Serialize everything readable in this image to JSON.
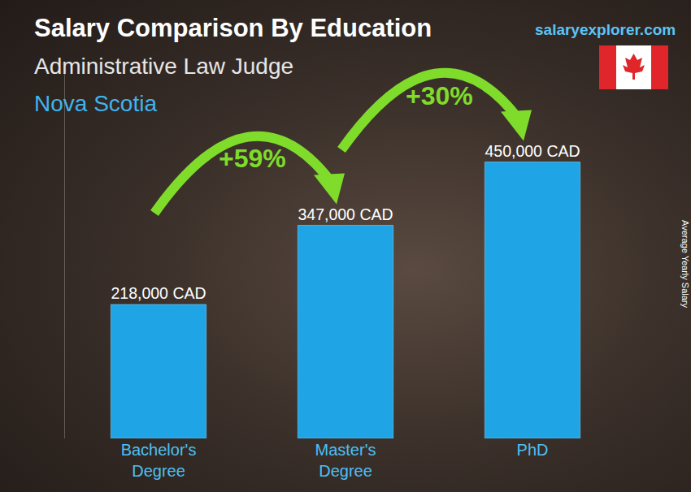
{
  "chart_data": {
    "type": "bar",
    "title": "Salary Comparison By Education",
    "subtitle": "Administrative Law Judge",
    "location": "Nova Scotia",
    "source": "salaryexplorer.com",
    "y_label": "Average Yearly Salary",
    "categories": [
      "Bachelor's Degree",
      "Master's Degree",
      "PhD"
    ],
    "values": [
      218000,
      347000,
      450000
    ],
    "value_labels": [
      "218,000 CAD",
      "347,000 CAD",
      "450,000 CAD"
    ],
    "data_labels": true,
    "color": "#1fa5e6",
    "ylim": [
      0,
      600000
    ],
    "tick_labels": "x",
    "grid": false,
    "annotations": [
      {
        "text": "+59%",
        "from": 0,
        "to": 1
      },
      {
        "text": "+30%",
        "from": 1,
        "to": 2
      }
    ]
  }
}
